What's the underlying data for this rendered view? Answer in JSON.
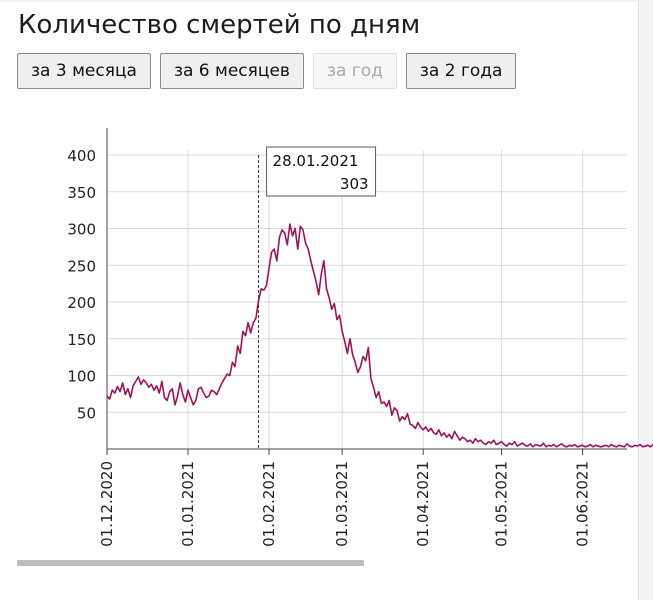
{
  "page": {
    "title": "Количество смертей по дням",
    "buttons": [
      {
        "label": "за 3 месяца",
        "enabled": true
      },
      {
        "label": "за 6 месяцев",
        "enabled": true
      },
      {
        "label": "за год",
        "enabled": false
      },
      {
        "label": "за 2 года",
        "enabled": true
      }
    ]
  },
  "chart_data": {
    "type": "line",
    "title": "",
    "xlabel": "",
    "ylabel": "",
    "x_start": "01.12.2020",
    "x_end": "18.06.2021",
    "ylim": [
      0,
      400
    ],
    "yticks": [
      50,
      100,
      150,
      200,
      250,
      300,
      350,
      400
    ],
    "xticks": [
      "01.12.2020",
      "01.01.2021",
      "01.02.2021",
      "01.03.2021",
      "01.04.2021",
      "01.05.2021",
      "01.06.2021"
    ],
    "grid": true,
    "line_color": "#a0135b",
    "tooltip": {
      "date": "28.01.2021",
      "value": "303"
    },
    "series": [
      {
        "values": [
          72,
          68,
          80,
          76,
          85,
          78,
          90,
          74,
          82,
          70,
          86,
          92,
          98,
          88,
          94,
          90,
          84,
          88,
          80,
          86,
          76,
          92,
          70,
          66,
          78,
          82,
          60,
          72,
          90,
          74,
          64,
          80,
          70,
          60,
          66,
          82,
          84,
          76,
          70,
          72,
          80,
          78,
          74,
          82,
          90,
          96,
          102,
          100,
          118,
          112,
          140,
          130,
          160,
          154,
          172,
          158,
          172,
          178,
          202,
          218,
          216,
          222,
          246,
          268,
          272,
          256,
          288,
          298,
          294,
          278,
          306,
          290,
          300,
          272,
          303,
          298,
          280,
          272,
          256,
          242,
          228,
          210,
          238,
          256,
          218,
          206,
          190,
          198,
          176,
          182,
          160,
          146,
          130,
          150,
          128,
          118,
          104,
          112,
          126,
          120,
          138,
          96,
          84,
          70,
          78,
          62,
          64,
          58,
          66,
          46,
          56,
          52,
          38,
          44,
          40,
          48,
          34,
          32,
          28,
          36,
          30,
          26,
          30,
          24,
          28,
          22,
          20,
          26,
          18,
          22,
          16,
          20,
          14,
          24,
          18,
          12,
          16,
          14,
          10,
          12,
          8,
          14,
          10,
          12,
          8,
          6,
          10,
          8,
          12,
          6,
          8,
          10,
          6,
          4,
          8,
          6,
          10,
          4,
          6,
          8,
          5,
          4,
          7,
          3,
          6,
          5,
          4,
          8,
          3,
          5,
          4,
          6,
          3,
          5,
          7,
          4,
          3,
          5,
          4,
          6,
          3,
          4,
          5,
          3,
          4,
          6,
          3,
          5,
          4,
          3,
          4,
          5,
          3,
          6,
          4,
          3,
          5,
          4,
          3,
          7,
          4,
          3,
          5,
          4,
          6,
          3,
          4,
          5,
          3,
          6,
          4,
          8,
          3
        ]
      }
    ]
  }
}
